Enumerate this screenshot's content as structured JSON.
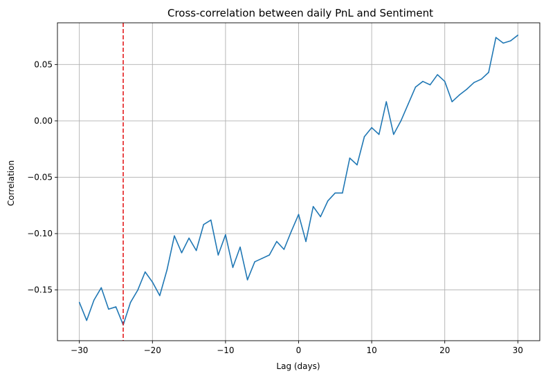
{
  "chart_data": {
    "type": "line",
    "title": "Cross-correlation between daily PnL and Sentiment",
    "xlabel": "Lag (days)",
    "ylabel": "Correlation",
    "xlim": [
      -33,
      33
    ],
    "ylim": [
      -0.195,
      0.087
    ],
    "x_ticks": [
      -30,
      -20,
      -10,
      0,
      10,
      20,
      30
    ],
    "x_tick_labels": [
      "−30",
      "−20",
      "−10",
      "0",
      "10",
      "20",
      "30"
    ],
    "y_ticks": [
      -0.15,
      -0.1,
      -0.05,
      0.0,
      0.05
    ],
    "y_tick_labels": [
      "−0.15",
      "−0.10",
      "−0.05",
      "0.00",
      "0.05"
    ],
    "grid": true,
    "series": [
      {
        "color": "#1f77b4",
        "x": [
          -30,
          -29,
          -28,
          -27,
          -26,
          -25,
          -24,
          -23,
          -22,
          -21,
          -20,
          -19,
          -18,
          -17,
          -16,
          -15,
          -14,
          -13,
          -12,
          -11,
          -10,
          -9,
          -8,
          -7,
          -6,
          -5,
          -4,
          -3,
          -2,
          -1,
          0,
          1,
          2,
          3,
          4,
          5,
          6,
          7,
          8,
          9,
          10,
          11,
          12,
          13,
          14,
          15,
          16,
          17,
          18,
          19,
          20,
          21,
          22,
          23,
          24,
          25,
          26,
          27,
          28,
          29,
          30
        ],
        "y": [
          -0.161,
          -0.177,
          -0.159,
          -0.148,
          -0.167,
          -0.165,
          -0.181,
          -0.161,
          -0.15,
          -0.134,
          -0.143,
          -0.155,
          -0.132,
          -0.102,
          -0.117,
          -0.104,
          -0.115,
          -0.092,
          -0.088,
          -0.119,
          -0.101,
          -0.13,
          -0.112,
          -0.141,
          -0.125,
          -0.122,
          -0.119,
          -0.107,
          -0.114,
          -0.098,
          -0.083,
          -0.107,
          -0.076,
          -0.085,
          -0.071,
          -0.064,
          -0.064,
          -0.033,
          -0.039,
          -0.014,
          -0.006,
          -0.012,
          0.017,
          -0.012,
          0.0,
          0.015,
          0.03,
          0.035,
          0.032,
          0.041,
          0.035,
          0.017,
          0.023,
          0.028,
          0.034,
          0.037,
          0.043,
          0.074,
          0.069,
          0.071,
          0.076
        ]
      }
    ],
    "vlines": [
      {
        "x": -24,
        "color": "#e41a1c",
        "style": "dashed"
      }
    ]
  }
}
